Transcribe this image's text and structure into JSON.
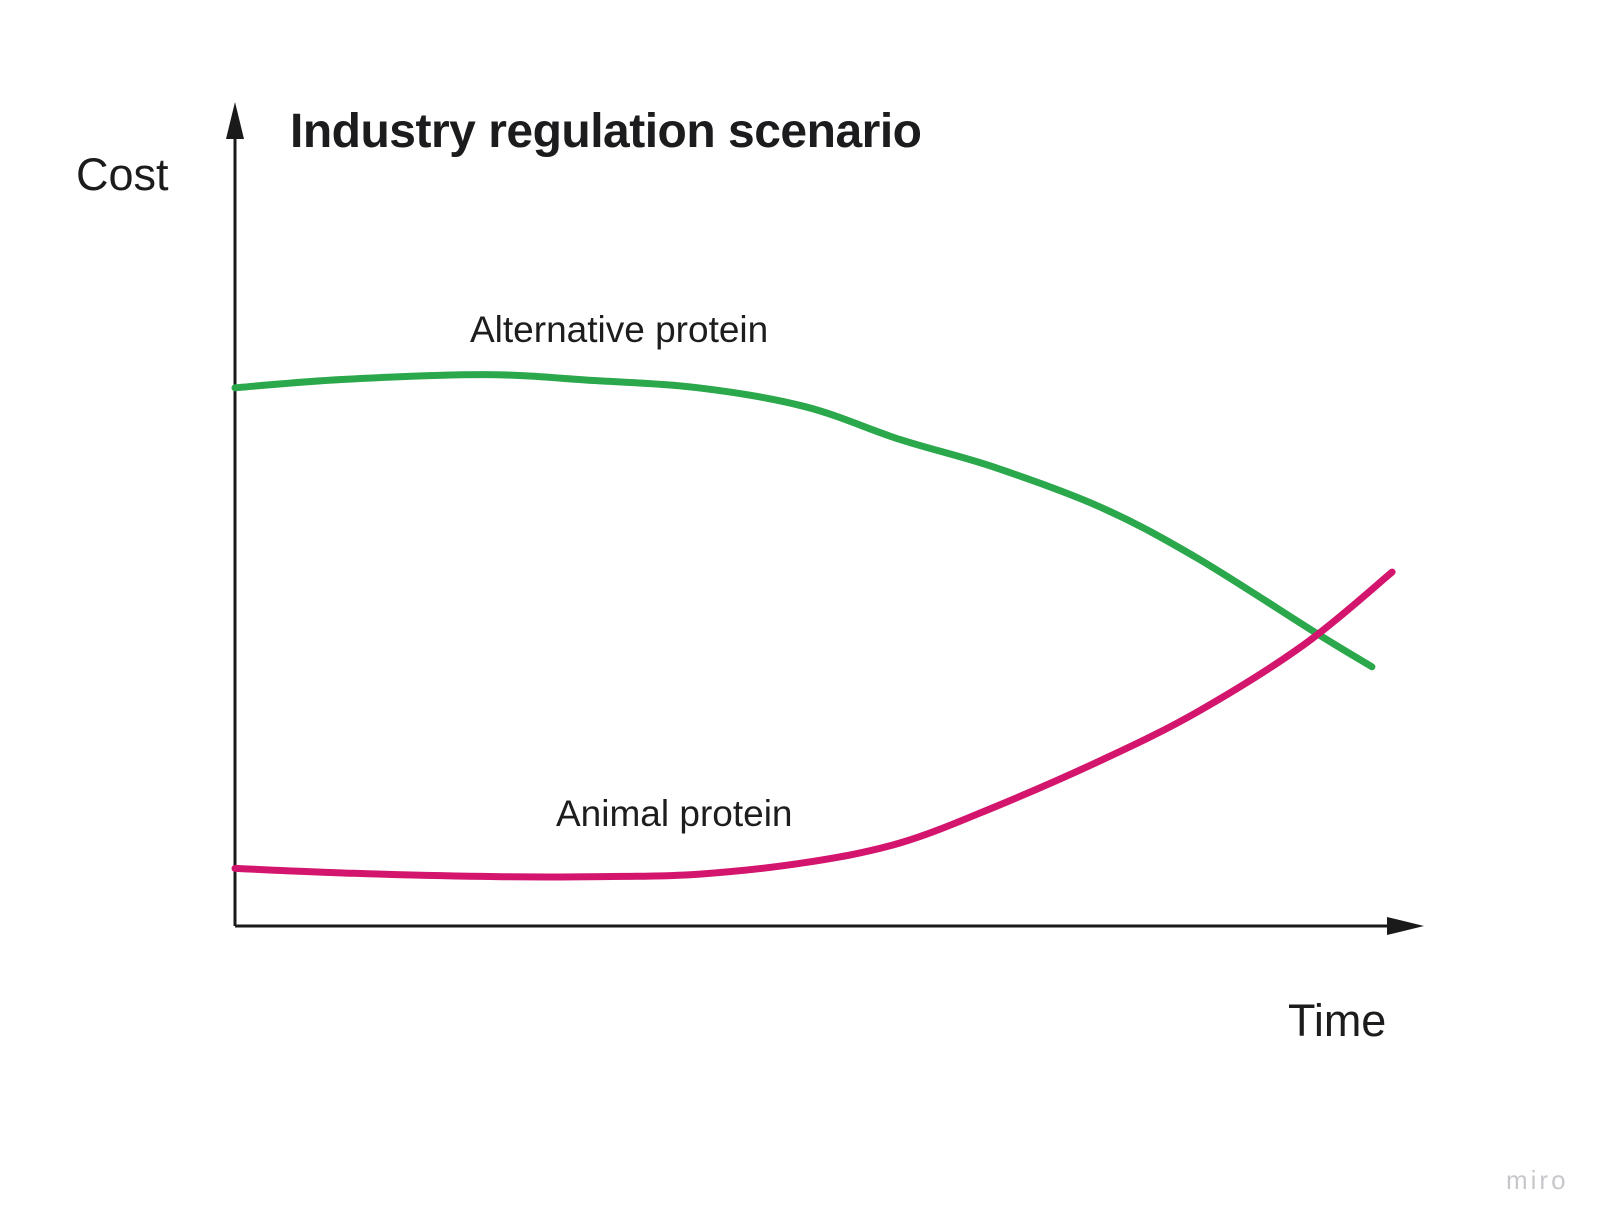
{
  "page": {
    "background_color": "#ffffff"
  },
  "watermark": {
    "text": "miro",
    "color": "#c8c8cc"
  },
  "colors": {
    "axis": "#1a1a1a",
    "text": "#1c1c1e",
    "alternative_protein": "#2aa84b",
    "animal_protein": "#d4156e"
  },
  "chart_data": {
    "type": "line",
    "title": "Industry regulation scenario",
    "xlabel": "Time",
    "ylabel": "Cost",
    "grid": false,
    "legend_position": "inline-annotations",
    "axes_style": "qualitative sketch axes with arrowheads, no ticks or numeric scale",
    "x_range": [
      0,
      1
    ],
    "y_range": [
      0,
      1
    ],
    "series": [
      {
        "name": "Alternative protein",
        "color": "#2aa84b",
        "description": "Starts high, plateaus, then declines over time",
        "points": [
          [
            0.0,
            0.654
          ],
          [
            0.09,
            0.664
          ],
          [
            0.21,
            0.67
          ],
          [
            0.3,
            0.663
          ],
          [
            0.39,
            0.654
          ],
          [
            0.48,
            0.631
          ],
          [
            0.56,
            0.591
          ],
          [
            0.64,
            0.557
          ],
          [
            0.73,
            0.508
          ],
          [
            0.81,
            0.447
          ],
          [
            0.91,
            0.356
          ],
          [
            0.957,
            0.315
          ]
        ]
      },
      {
        "name": "Animal protein",
        "color": "#d4156e",
        "description": "Starts low, stays flat, then rises steeply over time",
        "points": [
          [
            0.0,
            0.07
          ],
          [
            0.1,
            0.064
          ],
          [
            0.22,
            0.06
          ],
          [
            0.31,
            0.06
          ],
          [
            0.39,
            0.063
          ],
          [
            0.48,
            0.077
          ],
          [
            0.56,
            0.101
          ],
          [
            0.64,
            0.145
          ],
          [
            0.73,
            0.202
          ],
          [
            0.81,
            0.26
          ],
          [
            0.9,
            0.342
          ],
          [
            0.974,
            0.43
          ]
        ]
      }
    ],
    "crossover_point": [
      0.91,
      0.356
    ]
  }
}
